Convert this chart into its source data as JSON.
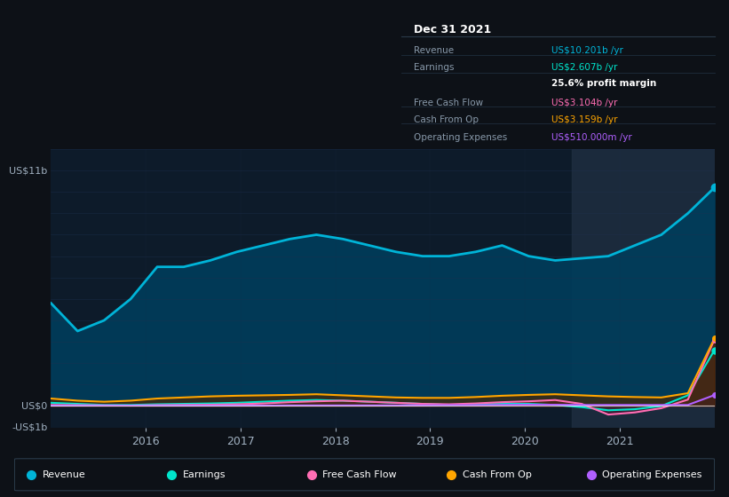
{
  "bg_color": "#0d1117",
  "chart_bg": "#0d1b2a",
  "grid_color": "#1e3050",
  "title_label": "Dec 31 2021",
  "ylabel_top": "US$11b",
  "ylabel_zero": "US$0",
  "ylabel_bottom": "-US$1b",
  "x_ticks": [
    "2016",
    "2017",
    "2018",
    "2019",
    "2020",
    "2021"
  ],
  "ylim": [
    -1.0,
    12.0
  ],
  "xlim": [
    2015.0,
    2022.0
  ],
  "legend": [
    {
      "label": "Revenue",
      "color": "#00b4d8"
    },
    {
      "label": "Earnings",
      "color": "#00e5cc"
    },
    {
      "label": "Free Cash Flow",
      "color": "#ff6eb4"
    },
    {
      "label": "Cash From Op",
      "color": "#ffa500"
    },
    {
      "label": "Operating Expenses",
      "color": "#b060ff"
    }
  ],
  "revenue": [
    4.8,
    3.5,
    4.0,
    5.0,
    6.5,
    6.5,
    6.8,
    7.2,
    7.5,
    7.8,
    8.0,
    7.8,
    7.5,
    7.2,
    7.0,
    7.0,
    7.2,
    7.5,
    7.0,
    6.8,
    6.9,
    7.0,
    7.5,
    8.0,
    9.0,
    10.201
  ],
  "earnings": [
    0.15,
    0.1,
    0.05,
    0.05,
    0.08,
    0.1,
    0.12,
    0.15,
    0.2,
    0.25,
    0.28,
    0.25,
    0.2,
    0.15,
    0.1,
    0.05,
    0.08,
    0.1,
    0.1,
    0.05,
    -0.05,
    -0.2,
    -0.15,
    0.0,
    0.5,
    2.607
  ],
  "free_cash_flow": [
    0.05,
    0.04,
    0.03,
    0.02,
    0.04,
    0.05,
    0.06,
    0.08,
    0.12,
    0.18,
    0.22,
    0.25,
    0.2,
    0.15,
    0.1,
    0.08,
    0.12,
    0.18,
    0.22,
    0.28,
    0.1,
    -0.4,
    -0.3,
    -0.1,
    0.3,
    3.104
  ],
  "cash_from_op": [
    0.35,
    0.25,
    0.2,
    0.25,
    0.35,
    0.4,
    0.45,
    0.48,
    0.5,
    0.52,
    0.55,
    0.5,
    0.45,
    0.4,
    0.38,
    0.38,
    0.42,
    0.48,
    0.52,
    0.55,
    0.5,
    0.45,
    0.42,
    0.4,
    0.6,
    3.159
  ],
  "operating_expenses": [
    0.02,
    0.02,
    0.02,
    0.02,
    0.02,
    0.02,
    0.02,
    0.02,
    0.02,
    0.03,
    0.03,
    0.03,
    0.03,
    0.03,
    0.03,
    0.04,
    0.04,
    0.05,
    0.06,
    0.06,
    0.05,
    0.05,
    0.05,
    0.05,
    0.05,
    0.51
  ],
  "n_points": 26,
  "table_rows": [
    {
      "label": "Revenue",
      "value": "US$10.201b /yr",
      "value_color": "#00b4d8",
      "bold_value": false
    },
    {
      "label": "Earnings",
      "value": "US$2.607b /yr",
      "value_color": "#00e5cc",
      "bold_value": false
    },
    {
      "label": "",
      "value": "25.6% profit margin",
      "value_color": "#ffffff",
      "bold_value": true
    },
    {
      "label": "Free Cash Flow",
      "value": "US$3.104b /yr",
      "value_color": "#ff6eb4",
      "bold_value": false
    },
    {
      "label": "Cash From Op",
      "value": "US$3.159b /yr",
      "value_color": "#ffa500",
      "bold_value": false
    },
    {
      "label": "Operating Expenses",
      "value": "US$510.000m /yr",
      "value_color": "#b060ff",
      "bold_value": false
    }
  ]
}
